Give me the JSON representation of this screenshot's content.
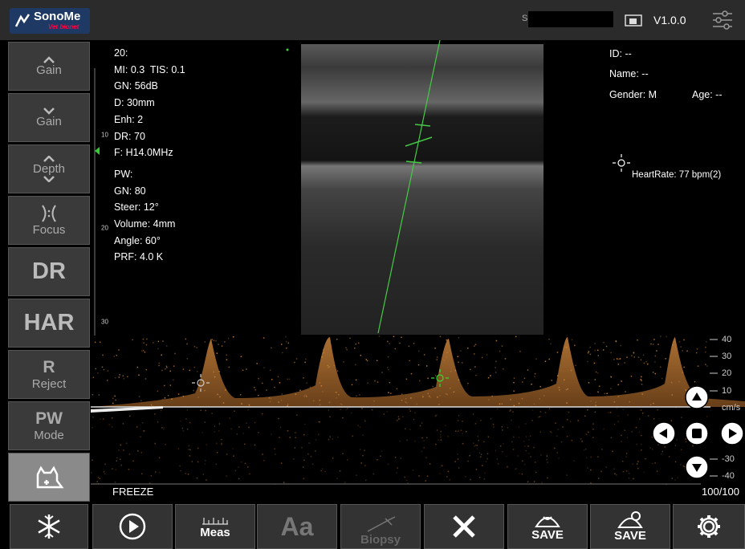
{
  "header": {
    "logo_title": "SonoMe",
    "logo_subtitle": "Vet bionet",
    "serial_prefix": "S",
    "version": "V1.0.0"
  },
  "sidebar": [
    {
      "label": "Gain"
    },
    {
      "label": "Gain"
    },
    {
      "label": "Depth"
    },
    {
      "label": "Focus"
    },
    {
      "label": "DR"
    },
    {
      "label": "HAR"
    },
    {
      "label": "R",
      "sublabel": "Reject"
    },
    {
      "label": "PW",
      "sublabel": "Mode"
    }
  ],
  "parameters": [
    "20:",
    "MI: 0.3  TIS: 0.1",
    "GN: 56dB",
    "D: 30mm",
    "Enh: 2",
    "DR: 70",
    "F: H14.0MHz",
    "PW:",
    "GN: 80",
    "Steer: 12°",
    "Volume: 4mm",
    "Angle: 60°",
    "PRF: 4.0 K"
  ],
  "patient": {
    "id": "ID: --",
    "name": "Name: --",
    "gender": "Gender: M",
    "age": "Age: --"
  },
  "heart_rate": "HeartRate: 77 bpm(2)",
  "depth_scale": [
    "10",
    "20",
    "30"
  ],
  "velocity_scale": [
    "40",
    "30",
    "20",
    "10",
    "cm/s",
    "-30",
    "-40"
  ],
  "status": {
    "freeze": "FREEZE",
    "frame": "100/100"
  },
  "toolbar": {
    "meas": "Meas",
    "text": "Aa",
    "biopsy": "Biopsy",
    "save_image": "SAVE",
    "save_clip": "SAVE"
  }
}
